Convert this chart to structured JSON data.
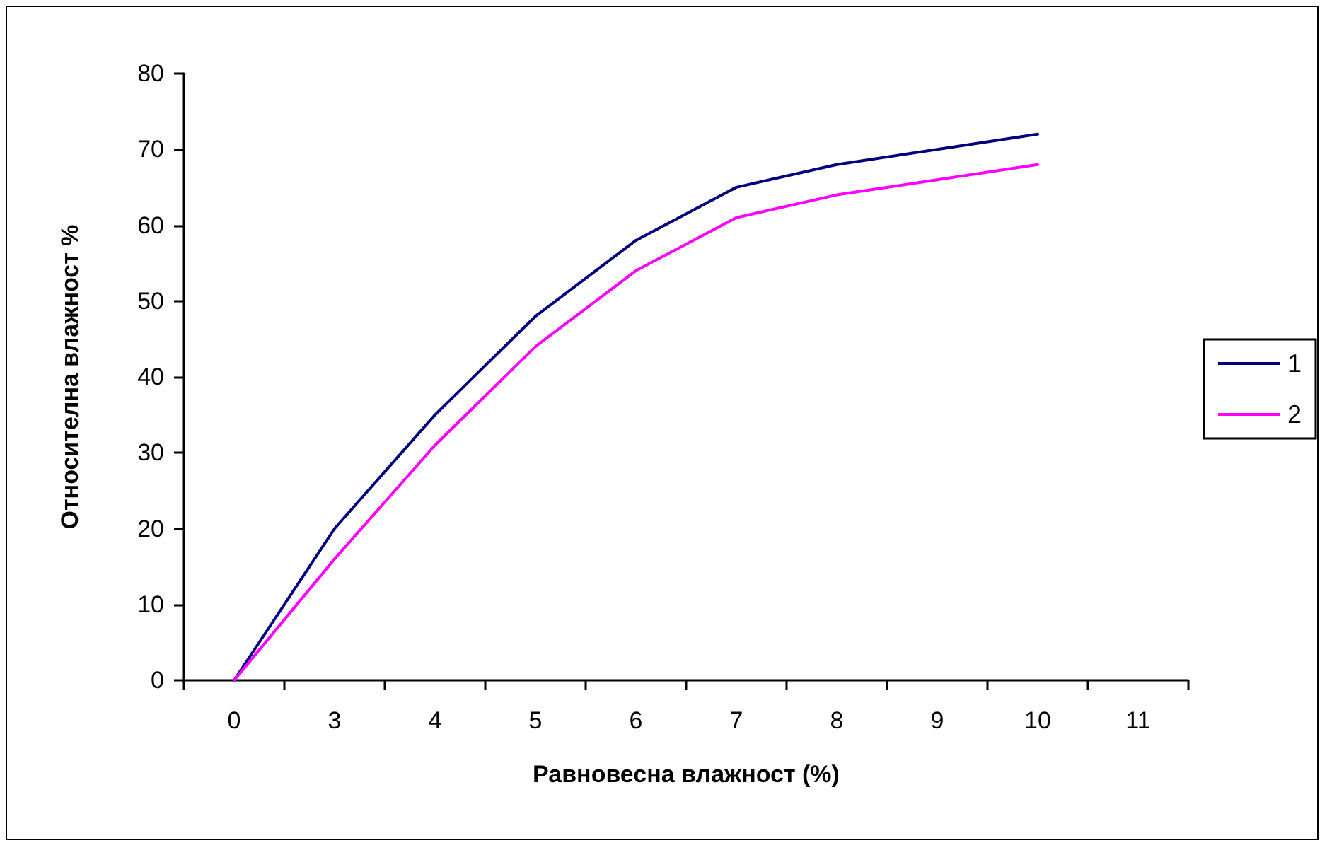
{
  "chart_data": {
    "type": "line",
    "xlabel": "Равновесна влажност (%)",
    "ylabel": "Относителна влажност %",
    "categories": [
      "0",
      "3",
      "4",
      "5",
      "6",
      "7",
      "8",
      "9",
      "10",
      "11"
    ],
    "series": [
      {
        "name": "1",
        "color": "#000080",
        "values": [
          0,
          20,
          35,
          48,
          58,
          65,
          68,
          70,
          72,
          null
        ]
      },
      {
        "name": "2",
        "color": "#ff00ff",
        "values": [
          0,
          16,
          31,
          44,
          54,
          61,
          64,
          66,
          68,
          null
        ]
      }
    ],
    "ylim": [
      0,
      80
    ],
    "yticks": [
      0,
      10,
      20,
      30,
      40,
      50,
      60,
      70,
      80
    ],
    "grid": false,
    "legend": "right",
    "marker": "none",
    "line_style": "solid"
  }
}
